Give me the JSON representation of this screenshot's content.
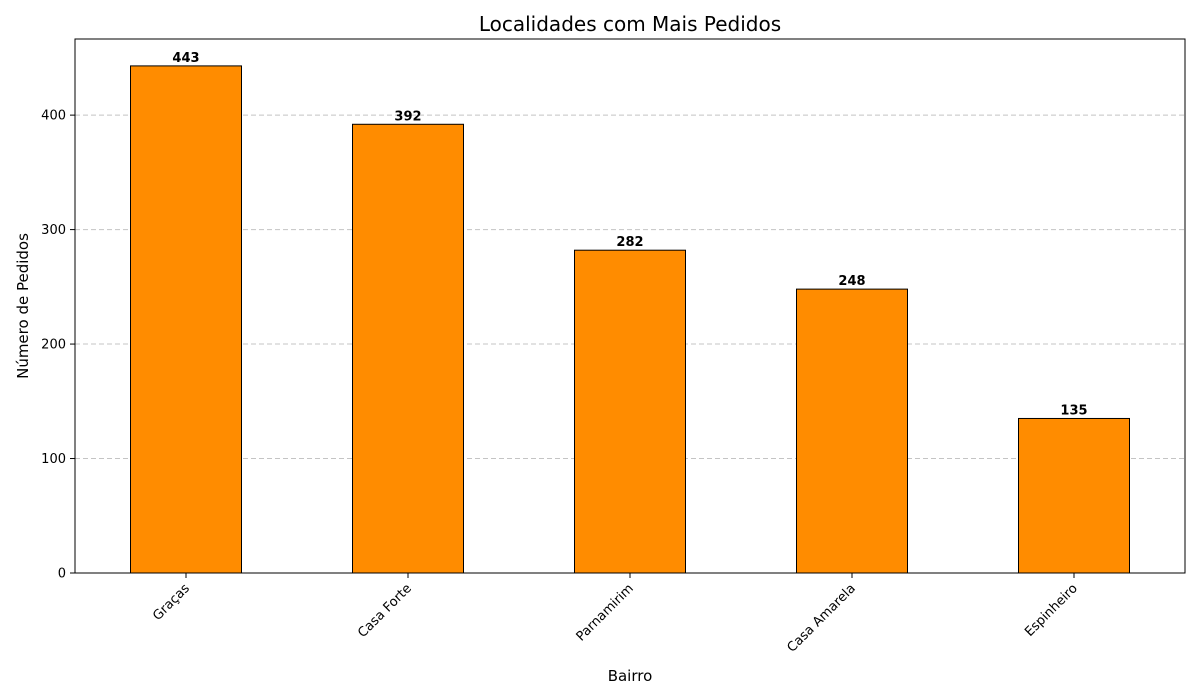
{
  "chart_data": {
    "type": "bar",
    "title": "Localidades com Mais Pedidos",
    "xlabel": "Bairro",
    "ylabel": "Número de Pedidos",
    "categories": [
      "Graças",
      "Casa Forte",
      "Parnamirim",
      "Casa Amarela",
      "Espinheiro"
    ],
    "values": [
      443,
      392,
      282,
      248,
      135
    ],
    "ylim": [
      0,
      466.5
    ],
    "yticks": [
      0,
      100,
      200,
      300,
      400
    ],
    "grid": "y-dashed",
    "bar_color": "#ff8c00",
    "bar_edge_color": "#000000",
    "show_value_labels": true,
    "legend": "none"
  }
}
